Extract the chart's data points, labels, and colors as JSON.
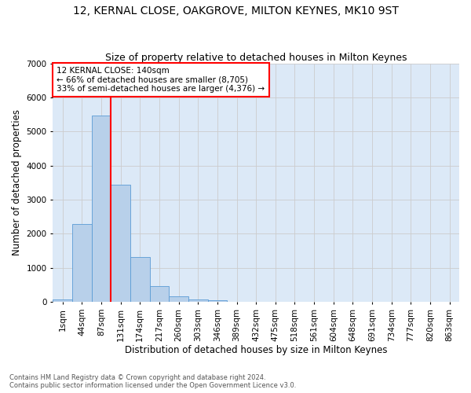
{
  "title1": "12, KERNAL CLOSE, OAKGROVE, MILTON KEYNES, MK10 9ST",
  "title2": "Size of property relative to detached houses in Milton Keynes",
  "xlabel": "Distribution of detached houses by size in Milton Keynes",
  "ylabel": "Number of detached properties",
  "footer1": "Contains HM Land Registry data © Crown copyright and database right 2024.",
  "footer2": "Contains public sector information licensed under the Open Government Licence v3.0.",
  "categories": [
    "1sqm",
    "44sqm",
    "87sqm",
    "131sqm",
    "174sqm",
    "217sqm",
    "260sqm",
    "303sqm",
    "346sqm",
    "389sqm",
    "432sqm",
    "475sqm",
    "518sqm",
    "561sqm",
    "604sqm",
    "648sqm",
    "691sqm",
    "734sqm",
    "777sqm",
    "820sqm",
    "863sqm"
  ],
  "values": [
    80,
    2280,
    5480,
    3430,
    1310,
    460,
    155,
    80,
    55,
    0,
    0,
    0,
    0,
    0,
    0,
    0,
    0,
    0,
    0,
    0,
    0
  ],
  "bar_color": "#b8d0ea",
  "bar_edge_color": "#5b9bd5",
  "vline_x": 2.5,
  "vline_color": "red",
  "annotation_line1": "12 KERNAL CLOSE: 140sqm",
  "annotation_line2": "← 66% of detached houses are smaller (8,705)",
  "annotation_line3": "33% of semi-detached houses are larger (4,376) →",
  "annotation_box_color": "white",
  "annotation_box_edge": "red",
  "ylim": [
    0,
    7000
  ],
  "yticks": [
    0,
    1000,
    2000,
    3000,
    4000,
    5000,
    6000,
    7000
  ],
  "grid_color": "#cccccc",
  "bg_color": "#dce9f7",
  "title1_fontsize": 10,
  "title2_fontsize": 9,
  "xlabel_fontsize": 8.5,
  "ylabel_fontsize": 8.5,
  "tick_fontsize": 7.5,
  "annotation_fontsize": 7.5
}
